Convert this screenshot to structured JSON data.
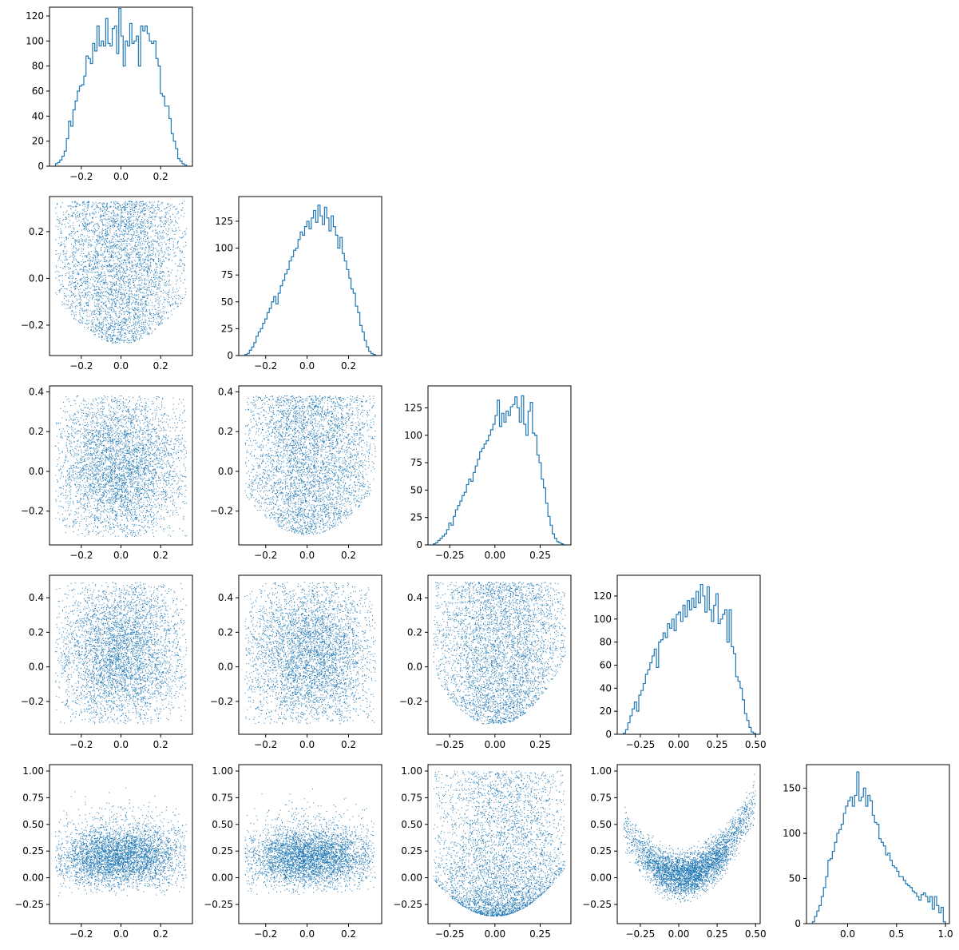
{
  "figure": {
    "rows": 5,
    "cols": 5,
    "series_color": "#1f77b4"
  },
  "chart_data": [
    {
      "type": "histogram",
      "row": 0,
      "col": 0,
      "xlim": [
        -0.36,
        0.36
      ],
      "ylim": [
        0,
        127
      ],
      "xticks": [
        -0.2,
        0.0,
        0.2
      ],
      "xtick_labels": [
        "−0.2",
        "0.0",
        "0.2"
      ],
      "yticks": [
        0,
        20,
        40,
        60,
        80,
        100,
        120
      ],
      "ytick_labels": [
        "0",
        "20",
        "40",
        "60",
        "80",
        "100",
        "120"
      ],
      "bins": {
        "start": -0.33,
        "end": 0.33,
        "count": 60
      },
      "counts": [
        2,
        3,
        5,
        8,
        12,
        22,
        36,
        32,
        45,
        52,
        60,
        64,
        65,
        72,
        88,
        86,
        82,
        98,
        92,
        112,
        96,
        100,
        96,
        118,
        98,
        96,
        110,
        112,
        90,
        126,
        104,
        80,
        100,
        96,
        114,
        98,
        100,
        104,
        80,
        112,
        108,
        112,
        106,
        100,
        98,
        100,
        86,
        80,
        58,
        56,
        48,
        48,
        38,
        26,
        20,
        14,
        6,
        4,
        2,
        1
      ]
    },
    {
      "type": "scatter",
      "row": 1,
      "col": 0,
      "xlim": [
        -0.36,
        0.36
      ],
      "ylim": [
        -0.33,
        0.35
      ],
      "xticks": [
        -0.2,
        0.0,
        0.2
      ],
      "xtick_labels": [
        "−0.2",
        "0.0",
        "0.2"
      ],
      "yticks": [
        -0.2,
        0.0,
        0.2
      ],
      "ytick_labels": [
        "−0.2",
        "0.0",
        "0.2"
      ],
      "n_points": 4000,
      "x_range": [
        -0.33,
        0.33
      ],
      "y_range": [
        -0.3,
        0.33
      ],
      "relation": "y lower bound ≈ -0.28 + 1.9·x² (V-shaped cloud)"
    },
    {
      "type": "histogram",
      "row": 1,
      "col": 1,
      "xlim": [
        -0.33,
        0.36
      ],
      "ylim": [
        0,
        148
      ],
      "xticks": [
        -0.2,
        0.0,
        0.2
      ],
      "xtick_labels": [
        "−0.2",
        "0.0",
        "0.2"
      ],
      "yticks": [
        0,
        25,
        50,
        75,
        100,
        125
      ],
      "ytick_labels": [
        "0",
        "25",
        "50",
        "75",
        "100",
        "125"
      ],
      "bins": {
        "start": -0.3,
        "end": 0.34,
        "count": 60
      },
      "counts": [
        1,
        2,
        5,
        8,
        12,
        18,
        22,
        25,
        30,
        34,
        40,
        44,
        50,
        55,
        48,
        58,
        65,
        70,
        76,
        80,
        88,
        92,
        98,
        100,
        108,
        115,
        112,
        120,
        125,
        118,
        128,
        135,
        124,
        140,
        130,
        122,
        138,
        128,
        116,
        130,
        120,
        112,
        100,
        110,
        95,
        88,
        80,
        72,
        62,
        58,
        46,
        40,
        28,
        22,
        14,
        8,
        4,
        2,
        1,
        0
      ]
    },
    {
      "type": "scatter",
      "row": 2,
      "col": 0,
      "xlim": [
        -0.36,
        0.36
      ],
      "ylim": [
        -0.37,
        0.43
      ],
      "xticks": [
        -0.2,
        0.0,
        0.2
      ],
      "xtick_labels": [
        "−0.2",
        "0.0",
        "0.2"
      ],
      "yticks": [
        -0.2,
        0.0,
        0.2,
        0.4
      ],
      "ytick_labels": [
        "−0.2",
        "0.0",
        "0.2",
        "0.4"
      ],
      "n_points": 4000,
      "x_range": [
        -0.33,
        0.33
      ],
      "y_range": [
        -0.33,
        0.38
      ],
      "relation": "roughly uniform, rectangular cloud"
    },
    {
      "type": "scatter",
      "row": 2,
      "col": 1,
      "xlim": [
        -0.33,
        0.36
      ],
      "ylim": [
        -0.37,
        0.43
      ],
      "xticks": [
        -0.2,
        0.0,
        0.2
      ],
      "xtick_labels": [
        "−0.2",
        "0.0",
        "0.2"
      ],
      "yticks": [
        -0.2,
        0.0,
        0.2,
        0.4
      ],
      "ytick_labels": [
        "−0.2",
        "0.0",
        "0.2",
        "0.4"
      ],
      "n_points": 4000,
      "x_range": [
        -0.3,
        0.33
      ],
      "y_range": [
        -0.33,
        0.38
      ],
      "relation": "y lower bound ≈ -0.32 + 2.2·x² (V-shaped cloud)"
    },
    {
      "type": "histogram",
      "row": 2,
      "col": 2,
      "xlim": [
        -0.37,
        0.42
      ],
      "ylim": [
        0,
        145
      ],
      "xticks": [
        -0.25,
        0.0,
        0.25
      ],
      "xtick_labels": [
        "−0.25",
        "0.00",
        "0.25"
      ],
      "yticks": [
        0,
        25,
        50,
        75,
        100,
        125
      ],
      "ytick_labels": [
        "0",
        "25",
        "50",
        "75",
        "100",
        "125"
      ],
      "bins": {
        "start": -0.34,
        "end": 0.39,
        "count": 60
      },
      "counts": [
        1,
        2,
        4,
        6,
        8,
        10,
        14,
        20,
        18,
        26,
        32,
        36,
        40,
        45,
        48,
        55,
        60,
        58,
        66,
        72,
        78,
        85,
        88,
        92,
        95,
        100,
        105,
        110,
        118,
        132,
        108,
        120,
        112,
        122,
        118,
        126,
        128,
        135,
        125,
        112,
        136,
        110,
        100,
        122,
        130,
        102,
        100,
        82,
        75,
        60,
        52,
        38,
        26,
        18,
        10,
        6,
        3,
        2,
        1,
        0
      ]
    },
    {
      "type": "scatter",
      "row": 3,
      "col": 0,
      "xlim": [
        -0.36,
        0.36
      ],
      "ylim": [
        -0.39,
        0.53
      ],
      "xticks": [
        -0.2,
        0.0,
        0.2
      ],
      "xtick_labels": [
        "−0.2",
        "0.0",
        "0.2"
      ],
      "yticks": [
        -0.2,
        0.0,
        0.2,
        0.4
      ],
      "ytick_labels": [
        "−0.2",
        "0.0",
        "0.2",
        "0.4"
      ],
      "n_points": 4000,
      "x_range": [
        -0.33,
        0.33
      ],
      "y_range": [
        -0.33,
        0.49
      ],
      "relation": "roughly uniform, rectangular cloud"
    },
    {
      "type": "scatter",
      "row": 3,
      "col": 1,
      "xlim": [
        -0.33,
        0.36
      ],
      "ylim": [
        -0.39,
        0.53
      ],
      "xticks": [
        -0.2,
        0.0,
        0.2
      ],
      "xtick_labels": [
        "−0.2",
        "0.0",
        "0.2"
      ],
      "yticks": [
        -0.2,
        0.0,
        0.2,
        0.4
      ],
      "ytick_labels": [
        "−0.2",
        "0.0",
        "0.2",
        "0.4"
      ],
      "n_points": 4000,
      "x_range": [
        -0.3,
        0.33
      ],
      "y_range": [
        -0.33,
        0.49
      ],
      "relation": "roughly uniform, rectangular cloud"
    },
    {
      "type": "scatter",
      "row": 3,
      "col": 2,
      "xlim": [
        -0.37,
        0.42
      ],
      "ylim": [
        -0.39,
        0.53
      ],
      "xticks": [
        -0.25,
        0.0,
        0.25
      ],
      "xtick_labels": [
        "−0.25",
        "0.00",
        "0.25"
      ],
      "yticks": [
        -0.2,
        0.0,
        0.2,
        0.4
      ],
      "ytick_labels": [
        "−0.2",
        "0.0",
        "0.2",
        "0.4"
      ],
      "n_points": 4000,
      "x_range": [
        -0.34,
        0.39
      ],
      "y_range": [
        -0.33,
        0.49
      ],
      "relation": "y lower bound ≈ -0.34 + 2.6·x² (V-shaped cloud)"
    },
    {
      "type": "histogram",
      "row": 3,
      "col": 3,
      "xlim": [
        -0.4,
        0.53
      ],
      "ylim": [
        0,
        138
      ],
      "xticks": [
        -0.25,
        0.0,
        0.25,
        0.5
      ],
      "xtick_labels": [
        "−0.25",
        "0.00",
        "0.25",
        "0.50"
      ],
      "yticks": [
        0,
        20,
        40,
        60,
        80,
        100,
        120
      ],
      "ytick_labels": [
        "0",
        "20",
        "40",
        "60",
        "80",
        "100",
        "120"
      ],
      "bins": {
        "start": -0.36,
        "end": 0.5,
        "count": 60
      },
      "counts": [
        1,
        4,
        10,
        16,
        22,
        28,
        20,
        34,
        38,
        44,
        52,
        56,
        62,
        68,
        74,
        58,
        80,
        82,
        88,
        84,
        96,
        92,
        100,
        90,
        104,
        106,
        98,
        112,
        102,
        116,
        108,
        118,
        110,
        124,
        114,
        130,
        120,
        106,
        128,
        108,
        98,
        112,
        122,
        96,
        100,
        104,
        108,
        80,
        108,
        76,
        70,
        50,
        46,
        40,
        30,
        18,
        12,
        6,
        2,
        1
      ]
    },
    {
      "type": "scatter",
      "row": 4,
      "col": 0,
      "xlim": [
        -0.36,
        0.36
      ],
      "ylim": [
        -0.43,
        1.06
      ],
      "xticks": [
        -0.2,
        0.0,
        0.2
      ],
      "xtick_labels": [
        "−0.2",
        "0.0",
        "0.2"
      ],
      "yticks": [
        -0.25,
        0.0,
        0.25,
        0.5,
        0.75,
        1.0
      ],
      "ytick_labels": [
        "−0.25",
        "0.00",
        "0.25",
        "0.50",
        "0.75",
        "1.00"
      ],
      "n_points": 4000,
      "x_range": [
        -0.33,
        0.33
      ],
      "y_range": [
        -0.36,
        1.0
      ],
      "relation": "dense band near y≈0.2, sparse above 0.5"
    },
    {
      "type": "scatter",
      "row": 4,
      "col": 1,
      "xlim": [
        -0.33,
        0.36
      ],
      "ylim": [
        -0.43,
        1.06
      ],
      "xticks": [
        -0.2,
        0.0,
        0.2
      ],
      "xtick_labels": [
        "−0.2",
        "0.0",
        "0.2"
      ],
      "yticks": [
        -0.25,
        0.0,
        0.25,
        0.5,
        0.75,
        1.0
      ],
      "ytick_labels": [
        "−0.25",
        "0.00",
        "0.25",
        "0.50",
        "0.75",
        "1.00"
      ],
      "n_points": 4000,
      "x_range": [
        -0.3,
        0.33
      ],
      "y_range": [
        -0.36,
        1.0
      ],
      "relation": "dense band near y≈0.2, sparse above 0.5"
    },
    {
      "type": "scatter",
      "row": 4,
      "col": 2,
      "xlim": [
        -0.37,
        0.42
      ],
      "ylim": [
        -0.43,
        1.06
      ],
      "xticks": [
        -0.25,
        0.0,
        0.25
      ],
      "xtick_labels": [
        "−0.25",
        "0.00",
        "0.25"
      ],
      "yticks": [
        -0.25,
        0.0,
        0.25,
        0.5,
        0.75,
        1.0
      ],
      "ytick_labels": [
        "−0.25",
        "0.00",
        "0.25",
        "0.50",
        "0.75",
        "1.00"
      ],
      "n_points": 4000,
      "x_range": [
        -0.34,
        0.39
      ],
      "y_range": [
        -0.36,
        1.0
      ],
      "relation": "U-shaped cloud, lower bound ≈ -0.36 + 3·x²"
    },
    {
      "type": "scatter",
      "row": 4,
      "col": 3,
      "xlim": [
        -0.4,
        0.53
      ],
      "ylim": [
        -0.43,
        1.06
      ],
      "xticks": [
        -0.25,
        0.0,
        0.25,
        0.5
      ],
      "xtick_labels": [
        "−0.25",
        "0.00",
        "0.25",
        "0.50"
      ],
      "yticks": [
        -0.25,
        0.0,
        0.25,
        0.5,
        0.75,
        1.0
      ],
      "ytick_labels": [
        "−0.25",
        "0.00",
        "0.25",
        "0.50",
        "0.75",
        "1.00"
      ],
      "n_points": 4000,
      "x_range": [
        -0.36,
        0.5
      ],
      "y_range": [
        -0.36,
        1.0
      ],
      "relation": "parabolic band y ≈ 0.02 + 3.2·(x−0.02)² ± 0.17"
    },
    {
      "type": "histogram",
      "row": 4,
      "col": 4,
      "xlim": [
        -0.42,
        1.04
      ],
      "ylim": [
        0,
        176
      ],
      "xticks": [
        0.0,
        0.5,
        1.0
      ],
      "xtick_labels": [
        "0.0",
        "0.5",
        "1.0"
      ],
      "yticks": [
        0,
        50,
        100,
        150
      ],
      "ytick_labels": [
        "0",
        "50",
        "100",
        "150"
      ],
      "bins": {
        "start": -0.36,
        "end": 1.0,
        "count": 60
      },
      "counts": [
        2,
        8,
        14,
        20,
        30,
        40,
        52,
        70,
        72,
        80,
        90,
        100,
        104,
        110,
        122,
        130,
        136,
        140,
        130,
        142,
        168,
        136,
        140,
        150,
        130,
        142,
        136,
        120,
        112,
        110,
        94,
        90,
        86,
        76,
        78,
        70,
        64,
        62,
        58,
        52,
        52,
        48,
        44,
        42,
        40,
        36,
        34,
        30,
        26,
        32,
        34,
        30,
        24,
        30,
        16,
        30,
        20,
        12,
        18,
        2
      ]
    }
  ]
}
